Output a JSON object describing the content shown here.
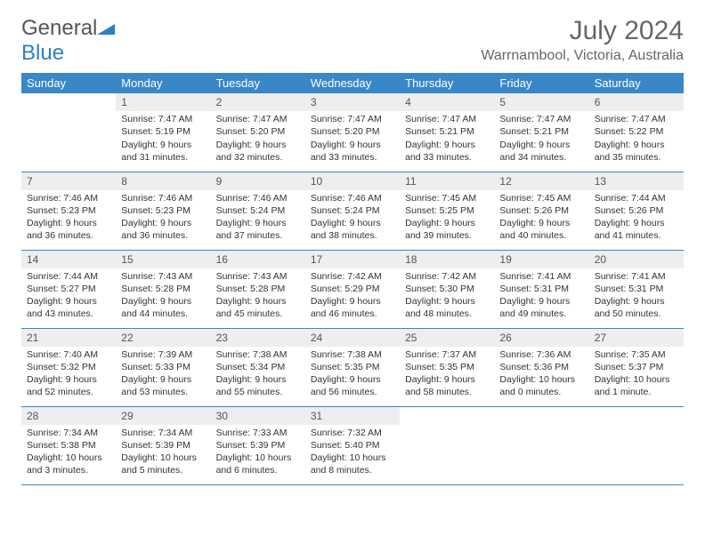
{
  "logo": {
    "text1": "General",
    "text2": "Blue",
    "accent_color": "#2d7fc4"
  },
  "title": "July 2024",
  "location": "Warrnambool, Victoria, Australia",
  "header_bg": "#3a87c7",
  "daynum_bg": "#eceef0",
  "day_headers": [
    "Sunday",
    "Monday",
    "Tuesday",
    "Wednesday",
    "Thursday",
    "Friday",
    "Saturday"
  ],
  "weeks": [
    [
      {
        "n": "",
        "lines": []
      },
      {
        "n": "1",
        "lines": [
          "Sunrise: 7:47 AM",
          "Sunset: 5:19 PM",
          "Daylight: 9 hours and 31 minutes."
        ]
      },
      {
        "n": "2",
        "lines": [
          "Sunrise: 7:47 AM",
          "Sunset: 5:20 PM",
          "Daylight: 9 hours and 32 minutes."
        ]
      },
      {
        "n": "3",
        "lines": [
          "Sunrise: 7:47 AM",
          "Sunset: 5:20 PM",
          "Daylight: 9 hours and 33 minutes."
        ]
      },
      {
        "n": "4",
        "lines": [
          "Sunrise: 7:47 AM",
          "Sunset: 5:21 PM",
          "Daylight: 9 hours and 33 minutes."
        ]
      },
      {
        "n": "5",
        "lines": [
          "Sunrise: 7:47 AM",
          "Sunset: 5:21 PM",
          "Daylight: 9 hours and 34 minutes."
        ]
      },
      {
        "n": "6",
        "lines": [
          "Sunrise: 7:47 AM",
          "Sunset: 5:22 PM",
          "Daylight: 9 hours and 35 minutes."
        ]
      }
    ],
    [
      {
        "n": "7",
        "lines": [
          "Sunrise: 7:46 AM",
          "Sunset: 5:23 PM",
          "Daylight: 9 hours and 36 minutes."
        ]
      },
      {
        "n": "8",
        "lines": [
          "Sunrise: 7:46 AM",
          "Sunset: 5:23 PM",
          "Daylight: 9 hours and 36 minutes."
        ]
      },
      {
        "n": "9",
        "lines": [
          "Sunrise: 7:46 AM",
          "Sunset: 5:24 PM",
          "Daylight: 9 hours and 37 minutes."
        ]
      },
      {
        "n": "10",
        "lines": [
          "Sunrise: 7:46 AM",
          "Sunset: 5:24 PM",
          "Daylight: 9 hours and 38 minutes."
        ]
      },
      {
        "n": "11",
        "lines": [
          "Sunrise: 7:45 AM",
          "Sunset: 5:25 PM",
          "Daylight: 9 hours and 39 minutes."
        ]
      },
      {
        "n": "12",
        "lines": [
          "Sunrise: 7:45 AM",
          "Sunset: 5:26 PM",
          "Daylight: 9 hours and 40 minutes."
        ]
      },
      {
        "n": "13",
        "lines": [
          "Sunrise: 7:44 AM",
          "Sunset: 5:26 PM",
          "Daylight: 9 hours and 41 minutes."
        ]
      }
    ],
    [
      {
        "n": "14",
        "lines": [
          "Sunrise: 7:44 AM",
          "Sunset: 5:27 PM",
          "Daylight: 9 hours and 43 minutes."
        ]
      },
      {
        "n": "15",
        "lines": [
          "Sunrise: 7:43 AM",
          "Sunset: 5:28 PM",
          "Daylight: 9 hours and 44 minutes."
        ]
      },
      {
        "n": "16",
        "lines": [
          "Sunrise: 7:43 AM",
          "Sunset: 5:28 PM",
          "Daylight: 9 hours and 45 minutes."
        ]
      },
      {
        "n": "17",
        "lines": [
          "Sunrise: 7:42 AM",
          "Sunset: 5:29 PM",
          "Daylight: 9 hours and 46 minutes."
        ]
      },
      {
        "n": "18",
        "lines": [
          "Sunrise: 7:42 AM",
          "Sunset: 5:30 PM",
          "Daylight: 9 hours and 48 minutes."
        ]
      },
      {
        "n": "19",
        "lines": [
          "Sunrise: 7:41 AM",
          "Sunset: 5:31 PM",
          "Daylight: 9 hours and 49 minutes."
        ]
      },
      {
        "n": "20",
        "lines": [
          "Sunrise: 7:41 AM",
          "Sunset: 5:31 PM",
          "Daylight: 9 hours and 50 minutes."
        ]
      }
    ],
    [
      {
        "n": "21",
        "lines": [
          "Sunrise: 7:40 AM",
          "Sunset: 5:32 PM",
          "Daylight: 9 hours and 52 minutes."
        ]
      },
      {
        "n": "22",
        "lines": [
          "Sunrise: 7:39 AM",
          "Sunset: 5:33 PM",
          "Daylight: 9 hours and 53 minutes."
        ]
      },
      {
        "n": "23",
        "lines": [
          "Sunrise: 7:38 AM",
          "Sunset: 5:34 PM",
          "Daylight: 9 hours and 55 minutes."
        ]
      },
      {
        "n": "24",
        "lines": [
          "Sunrise: 7:38 AM",
          "Sunset: 5:35 PM",
          "Daylight: 9 hours and 56 minutes."
        ]
      },
      {
        "n": "25",
        "lines": [
          "Sunrise: 7:37 AM",
          "Sunset: 5:35 PM",
          "Daylight: 9 hours and 58 minutes."
        ]
      },
      {
        "n": "26",
        "lines": [
          "Sunrise: 7:36 AM",
          "Sunset: 5:36 PM",
          "Daylight: 10 hours and 0 minutes."
        ]
      },
      {
        "n": "27",
        "lines": [
          "Sunrise: 7:35 AM",
          "Sunset: 5:37 PM",
          "Daylight: 10 hours and 1 minute."
        ]
      }
    ],
    [
      {
        "n": "28",
        "lines": [
          "Sunrise: 7:34 AM",
          "Sunset: 5:38 PM",
          "Daylight: 10 hours and 3 minutes."
        ]
      },
      {
        "n": "29",
        "lines": [
          "Sunrise: 7:34 AM",
          "Sunset: 5:39 PM",
          "Daylight: 10 hours and 5 minutes."
        ]
      },
      {
        "n": "30",
        "lines": [
          "Sunrise: 7:33 AM",
          "Sunset: 5:39 PM",
          "Daylight: 10 hours and 6 minutes."
        ]
      },
      {
        "n": "31",
        "lines": [
          "Sunrise: 7:32 AM",
          "Sunset: 5:40 PM",
          "Daylight: 10 hours and 8 minutes."
        ]
      },
      {
        "n": "",
        "lines": []
      },
      {
        "n": "",
        "lines": []
      },
      {
        "n": "",
        "lines": []
      }
    ]
  ]
}
